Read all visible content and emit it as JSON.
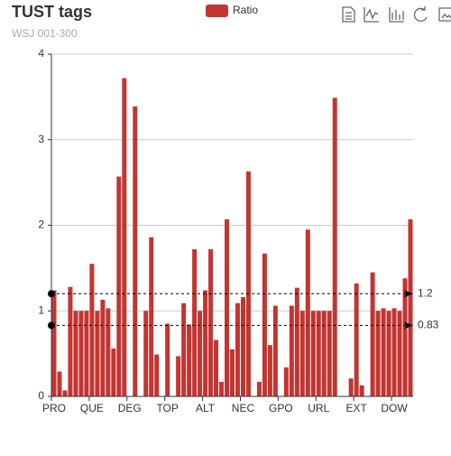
{
  "chart_data": {
    "type": "bar",
    "title": "TUST tags",
    "subtitle": "WSJ 001-300",
    "series": [
      {
        "name": "Ratio",
        "color": "#c23531",
        "values": [
          1.24,
          0.29,
          0.07,
          1.28,
          1.0,
          1.0,
          1.0,
          1.55,
          1.0,
          1.13,
          1.03,
          0.56,
          2.57,
          3.72,
          0,
          3.39,
          0,
          1.0,
          1.86,
          0.49,
          0,
          0.85,
          0,
          0.47,
          1.09,
          0.84,
          1.72,
          1.0,
          1.24,
          1.72,
          0.66,
          0.17,
          2.07,
          0.55,
          1.09,
          1.16,
          2.63,
          0,
          0.17,
          1.67,
          0.6,
          1.06,
          0,
          0.34,
          1.06,
          1.27,
          1.0,
          1.95,
          1.0,
          1.0,
          1.0,
          1.0,
          3.49,
          0,
          0,
          0.21,
          1.32,
          0.13,
          0,
          1.45,
          1.0,
          1.03,
          1.0,
          1.03,
          1.0,
          1.38,
          2.07
        ]
      }
    ],
    "categories": [
      "PRO",
      null,
      null,
      null,
      null,
      null,
      null,
      "QUE",
      null,
      null,
      null,
      null,
      null,
      null,
      "DEG",
      null,
      null,
      null,
      null,
      null,
      null,
      "TOP",
      null,
      null,
      null,
      null,
      null,
      null,
      "ALT",
      null,
      null,
      null,
      null,
      null,
      null,
      "NEC",
      null,
      null,
      null,
      null,
      null,
      null,
      "GPO",
      null,
      null,
      null,
      null,
      null,
      null,
      "URL",
      null,
      null,
      null,
      null,
      null,
      null,
      "EXT",
      null,
      null,
      null,
      null,
      null,
      null,
      "DOW",
      null,
      null,
      null
    ],
    "ylim": [
      0,
      4
    ],
    "yticks": [
      0,
      1,
      2,
      3,
      4
    ],
    "grid": true,
    "markLines": [
      1.2,
      0.83
    ]
  }
}
